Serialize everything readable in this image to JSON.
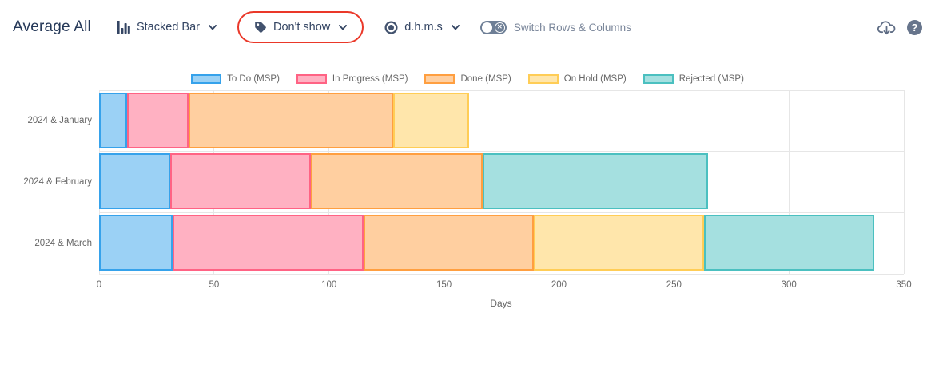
{
  "header": {
    "title": "Average All",
    "toolbar": {
      "chart_type": {
        "label": "Stacked Bar",
        "icon": "bar-chart-icon"
      },
      "show_mode": {
        "label": "Don't show",
        "icon": "tag-icon"
      },
      "time_format": {
        "label": "d.h.m.s",
        "icon": "record-icon"
      },
      "switch_toggle": {
        "label": "Switch Rows & Columns",
        "state": "off",
        "icon": "toggle-x-icon"
      },
      "annotation": {
        "shape": "red-ellipse",
        "color": "#ea3829",
        "around": "Don't show"
      }
    },
    "actions": {
      "download": {
        "icon": "cloud-download-icon"
      },
      "help": {
        "icon": "help-icon",
        "glyph": "?"
      }
    }
  },
  "chart_data": {
    "type": "bar",
    "orientation": "horizontal",
    "stacked": true,
    "title": "",
    "xlabel": "Days",
    "ylabel": "",
    "xlim": [
      0,
      350
    ],
    "x_ticks": [
      0,
      50,
      100,
      150,
      200,
      250,
      300,
      350
    ],
    "grid": true,
    "legend_position": "top",
    "categories": [
      "2024 & January",
      "2024 & February",
      "2024 & March"
    ],
    "series": [
      {
        "name": "To Do (MSP)",
        "fill": "#9BD1F5",
        "border": "#36A2EB",
        "values": [
          12,
          31,
          32
        ]
      },
      {
        "name": "In Progress (MSP)",
        "fill": "#FFB1C2",
        "border": "#FF6384",
        "values": [
          27,
          61,
          83
        ]
      },
      {
        "name": "Done (MSP)",
        "fill": "#FFCFA0",
        "border": "#FF9F40",
        "values": [
          89,
          75,
          74
        ]
      },
      {
        "name": "On Hold (MSP)",
        "fill": "#FFE6AB",
        "border": "#FFCD56",
        "values": [
          33,
          0,
          74
        ]
      },
      {
        "name": "Rejected (MSP)",
        "fill": "#A5E0E0",
        "border": "#4BC0C0",
        "values": [
          0,
          98,
          74
        ]
      }
    ]
  }
}
